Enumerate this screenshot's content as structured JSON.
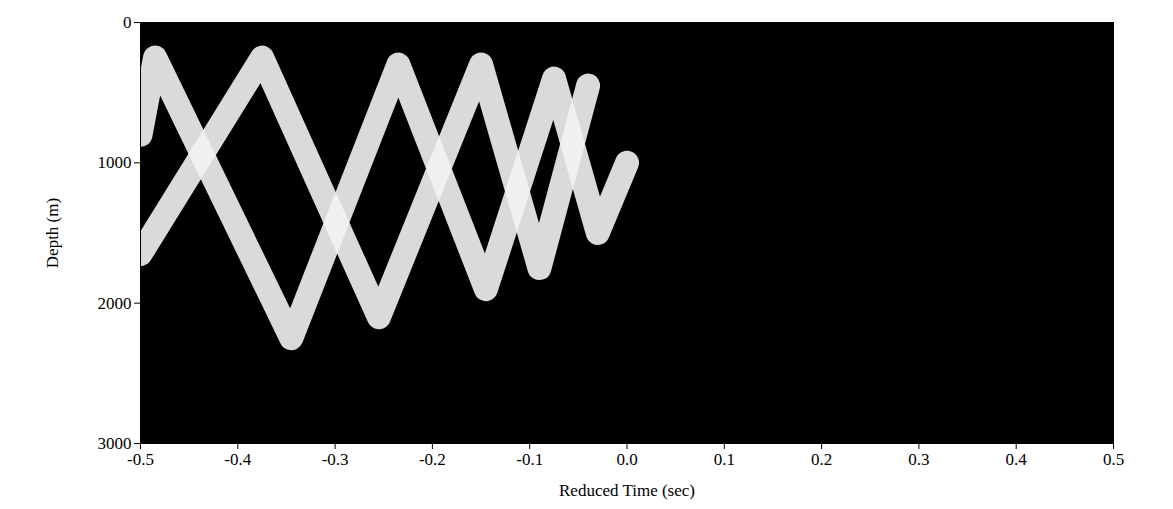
{
  "chart_data": {
    "type": "line",
    "xlabel": "Reduced Time (sec)",
    "ylabel": "Depth (m)",
    "xlim": [
      -0.5,
      0.5
    ],
    "xticks": [
      -0.5,
      -0.4,
      -0.3,
      -0.2,
      -0.1,
      {
        "value": 0,
        "label": "0.0"
      },
      0.1,
      0.2,
      0.3,
      0.4,
      0.5
    ],
    "ylim": [
      0,
      3000
    ],
    "yticks": [
      0,
      1000,
      2000,
      3000
    ],
    "grid": false,
    "series": [
      {
        "color": "#f2f2f2",
        "x": [
          -0.5,
          -0.375,
          -0.255,
          -0.15,
          -0.09,
          -0.04
        ],
        "values": [
          1650,
          250,
          2100,
          300,
          1750,
          450
        ]
      },
      {
        "color": "#f2f2f2",
        "x": [
          -0.5,
          -0.485,
          -0.345,
          -0.235,
          -0.145,
          -0.075,
          -0.03,
          0.0
        ],
        "values": [
          800,
          250,
          2250,
          300,
          1900,
          400,
          1500,
          1000
        ]
      }
    ]
  }
}
